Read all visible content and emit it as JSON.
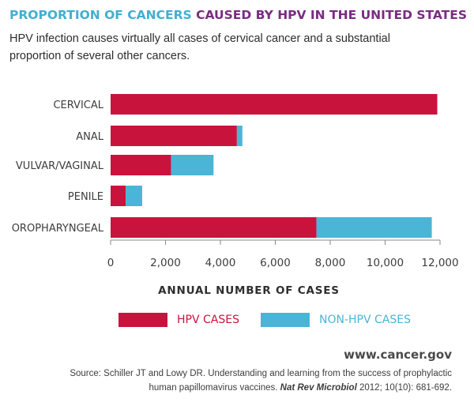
{
  "title_part1": "PROPORTION OF CANCERS",
  "title_part2": "CAUSED BY HPV IN THE UNITED STATES",
  "subtitle": "HPV infection causes virtually all cases of cervical cancer and a substantial proportion of several other cancers.",
  "footer": {
    "url": "www.cancer.gov",
    "source_line1": "Source: Schiller JT and Lowy DR. Understanding and learning from the success of prophylactic",
    "source_line2_prefix": "human papillomavirus vaccines.",
    "source_line2_journal": "Nat Rev Microbiol",
    "source_line2_suffix": "2012; 10(10): 681-692."
  },
  "colors": {
    "hpv": "#c8143d",
    "non_hpv": "#4ab5d6",
    "title_part1": "#42afd0",
    "title_part2": "#7a2c82",
    "legend_hpv_text": "#c8143d",
    "legend_non_hpv_text": "#4ab5d6",
    "axis": "#8a8a8a"
  },
  "chart_data": {
    "type": "bar",
    "orientation": "horizontal",
    "stacked": true,
    "categories": [
      "CERVICAL",
      "ANAL",
      "VULVAR/VAGINAL",
      "PENILE",
      "OROPHARYNGEAL"
    ],
    "series": [
      {
        "name": "HPV CASES",
        "values": [
          11900,
          4600,
          2200,
          550,
          7500
        ]
      },
      {
        "name": "NON-HPV CASES",
        "values": [
          0,
          200,
          1550,
          600,
          4200
        ]
      }
    ],
    "xlim": [
      0,
      12000
    ],
    "xticks": [
      0,
      2000,
      4000,
      6000,
      8000,
      10000,
      12000
    ],
    "xtick_labels": [
      "0",
      "2,000",
      "4,000",
      "6,000",
      "8,000",
      "10,000",
      "12,000"
    ],
    "xlabel": "ANNUAL NUMBER OF CASES",
    "legend": "bottom",
    "grid": false
  }
}
